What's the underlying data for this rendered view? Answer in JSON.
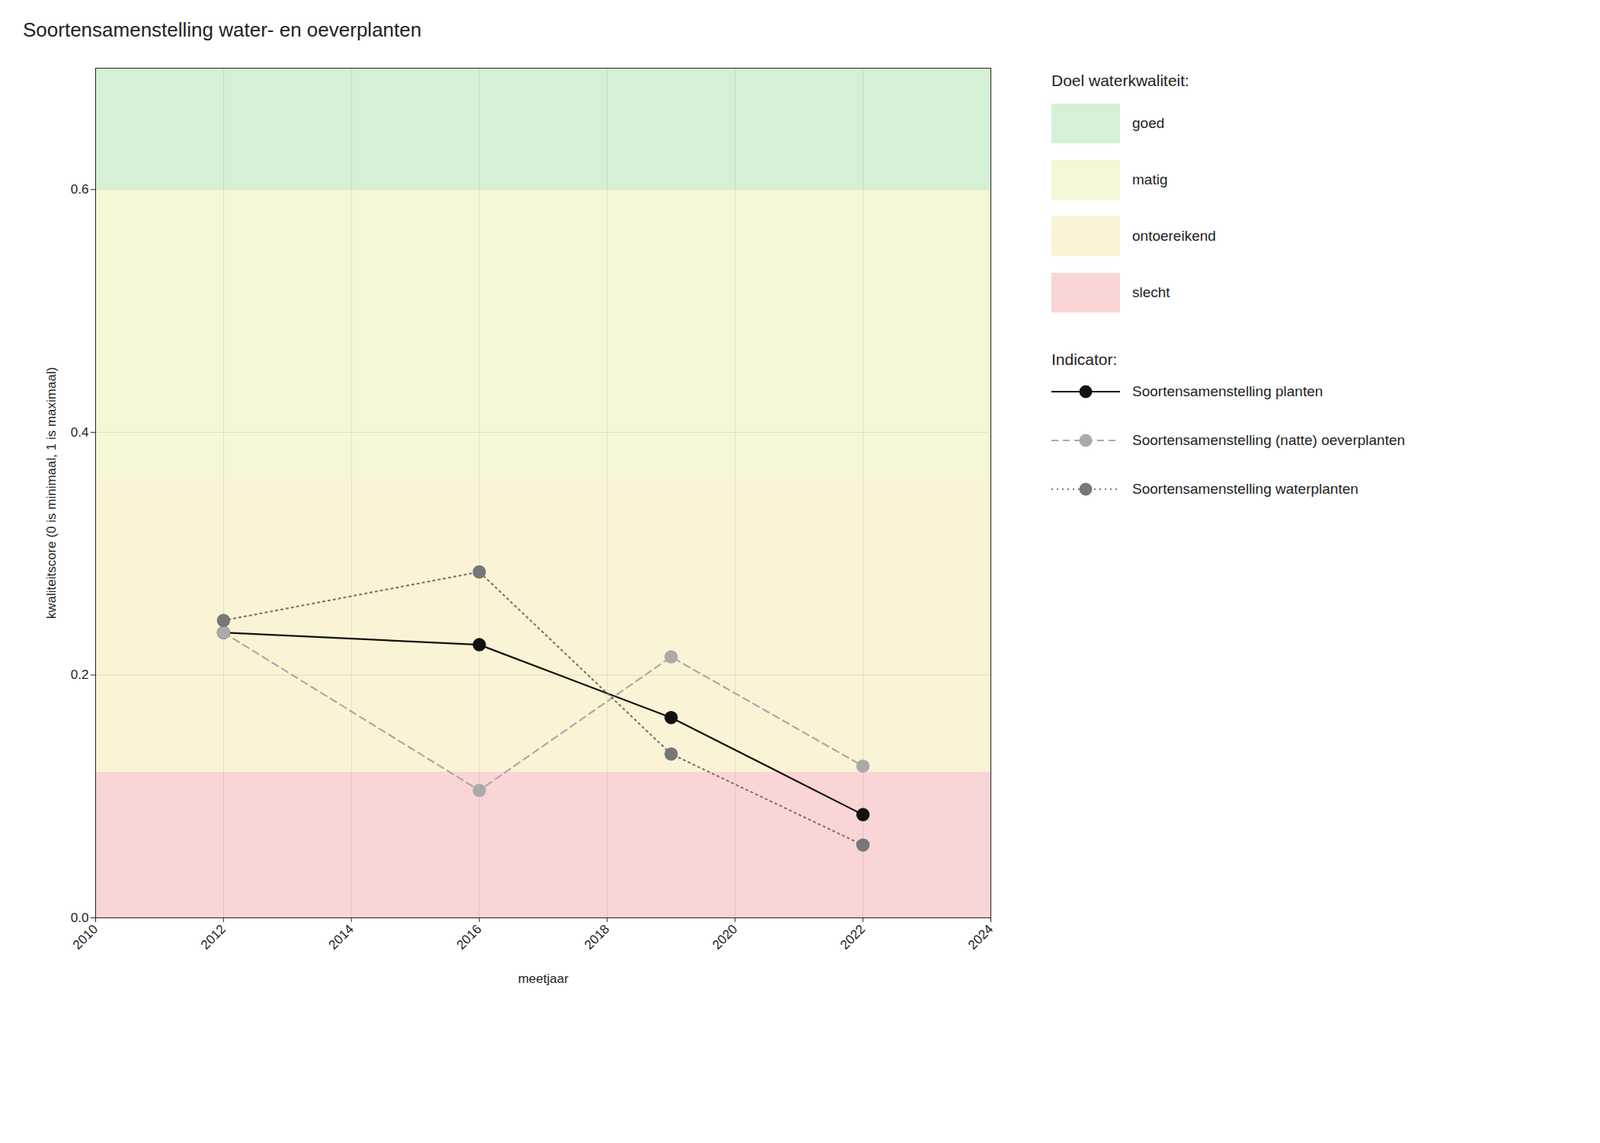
{
  "chart_data": {
    "type": "line",
    "title": "Soortensamenstelling water- en oeverplanten",
    "x_label": "meetjaar",
    "y_label": "kwaliteitscore (0 is minimaal, 1 is maximaal)",
    "x": [
      2012,
      2016,
      2019,
      2022
    ],
    "series": [
      {
        "name": "Soortensamenstelling planten",
        "color": "#111111",
        "line_style": "solid",
        "marker": "circle",
        "values": [
          0.235,
          0.225,
          0.165,
          0.085
        ]
      },
      {
        "name": "Soortensamenstelling (natte) oeverplanten",
        "color": "#aaaaaa",
        "line_style": "dashed",
        "marker": "circle",
        "values": [
          0.235,
          0.105,
          0.215,
          0.125
        ]
      },
      {
        "name": "Soortensamenstelling waterplanten",
        "color": "#777777",
        "line_style": "dotted",
        "marker": "circle",
        "values": [
          0.245,
          0.285,
          0.135,
          0.06
        ]
      }
    ],
    "xlim": [
      2010,
      2024
    ],
    "xticks": [
      2010,
      2012,
      2014,
      2016,
      2018,
      2020,
      2022,
      2024
    ],
    "ylim": [
      0,
      0.7
    ],
    "yticks": [
      {
        "value": 0,
        "label": "0.0"
      },
      0.2,
      0.4,
      0.6
    ],
    "grid": true,
    "legend": "right",
    "zones_title": "Doel waterkwaliteit:",
    "zones": [
      {
        "label": "goed",
        "from": 0.6,
        "to": 0.7,
        "color": "#d5f0d5"
      },
      {
        "label": "matig",
        "from": 0.36,
        "to": 0.6,
        "color": "#f5f7d5"
      },
      {
        "label": "ontoereikend",
        "from": 0.12,
        "to": 0.36,
        "color": "#faf3d5"
      },
      {
        "label": "slecht",
        "from": 0.0,
        "to": 0.12,
        "color": "#fad5d5"
      }
    ],
    "series_title": "Indicator:"
  }
}
